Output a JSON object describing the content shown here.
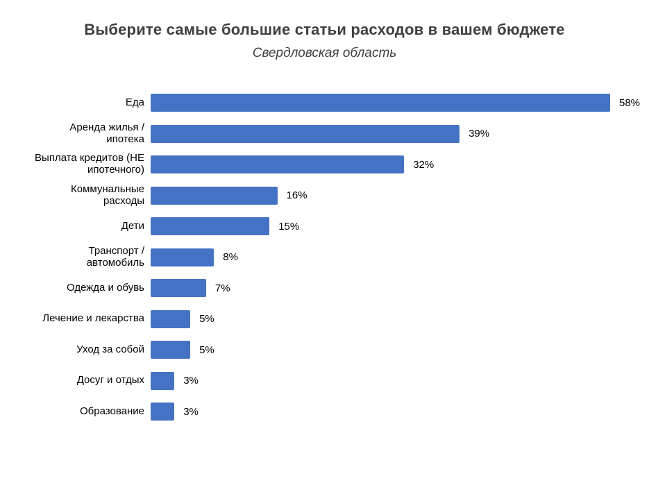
{
  "chart_data": {
    "type": "bar",
    "orientation": "horizontal",
    "title": "Выберите самые большие статьи расходов в вашем бюджете",
    "subtitle": "Свердловская область",
    "categories": [
      "Еда",
      "Аренда жилья /\nипотека",
      "Выплата кредитов (НЕ\nипотечного)",
      "Коммунальные\nрасходы",
      "Дети",
      "Транспорт /\nавтомобиль",
      "Одежда и обувь",
      "Лечение и лекарства",
      "Уход за собой",
      "Досуг и отдых",
      "Образование"
    ],
    "values": [
      58,
      39,
      32,
      16,
      15,
      8,
      7,
      5,
      5,
      3,
      3
    ],
    "value_labels": [
      "58%",
      "39%",
      "32%",
      "16%",
      "15%",
      "8%",
      "7%",
      "5%",
      "5%",
      "3%",
      "3%"
    ],
    "unit": "%",
    "xlim": [
      0,
      62
    ],
    "bar_color": "#4472C4",
    "grid": false,
    "legend": false,
    "value_label_position": "right-of-bar",
    "category_label_position": "left-of-bar"
  }
}
